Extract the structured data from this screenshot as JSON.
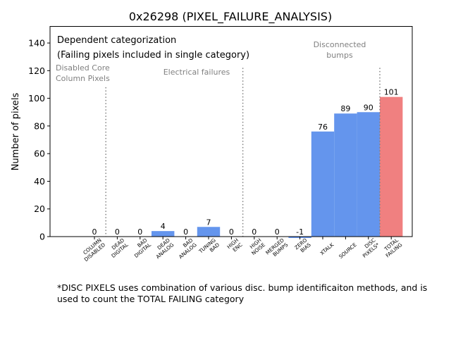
{
  "chart_data": {
    "type": "bar",
    "title": "0x26298 (PIXEL_FAILURE_ANALYSIS)",
    "xlabel": "",
    "ylabel": "Number of pixels",
    "ylim": [
      0,
      152
    ],
    "yticks": [
      0,
      20,
      40,
      60,
      80,
      100,
      120,
      140
    ],
    "categories": [
      [
        "COLUMN",
        "DISABLED"
      ],
      [
        "DEAD",
        "DIGITAL"
      ],
      [
        "BAD",
        "DIGITAL"
      ],
      [
        "DEAD",
        "ANALOG"
      ],
      [
        "BAD",
        "ANALOG"
      ],
      [
        "TUNING",
        "BAD"
      ],
      [
        "HIGH",
        "ENC"
      ],
      [
        "HIGH",
        "NOISE"
      ],
      [
        "MERGED",
        "BUMPS"
      ],
      [
        "ZERO",
        "BIAS"
      ],
      [
        "XTALK"
      ],
      [
        "SOURCE"
      ],
      [
        "DISC",
        "PIXELS*"
      ],
      [
        "TOTAL",
        "FAILING"
      ]
    ],
    "values": [
      0,
      0,
      0,
      4,
      0,
      7,
      0,
      0,
      0,
      -1,
      76,
      89,
      90,
      101
    ],
    "value_labels": [
      "0",
      "0",
      "0",
      "4",
      "0",
      "7",
      "0",
      "0",
      "0",
      "-1",
      "76",
      "89",
      "90",
      "101"
    ],
    "bar_colors": [
      "#6495ED",
      "#6495ED",
      "#6495ED",
      "#6495ED",
      "#6495ED",
      "#6495ED",
      "#6495ED",
      "#6495ED",
      "#6495ED",
      "#6495ED",
      "#6495ED",
      "#6495ED",
      "#6495ED",
      "#F08080"
    ],
    "dividers_after_index": [
      0,
      6,
      12
    ],
    "annotations": {
      "header_line1": "Dependent categorization",
      "header_line2": "(Failing pixels included in single category)",
      "disabled_core": [
        "Disabled Core",
        "Column Pixels"
      ],
      "electrical": [
        "Electrical failures"
      ],
      "disconnected": [
        "Disconnected",
        "bumps"
      ]
    },
    "grid": false,
    "legend": "none"
  },
  "footnote": {
    "line1": "*DISC PIXELS uses combination of various disc. bump identificaiton methods, and is",
    "line2": "used to count the TOTAL FAILING category"
  },
  "colors": {
    "bar": "#6495ED",
    "total": "#F08080",
    "annotation": "#808080",
    "divider": "#808080"
  }
}
